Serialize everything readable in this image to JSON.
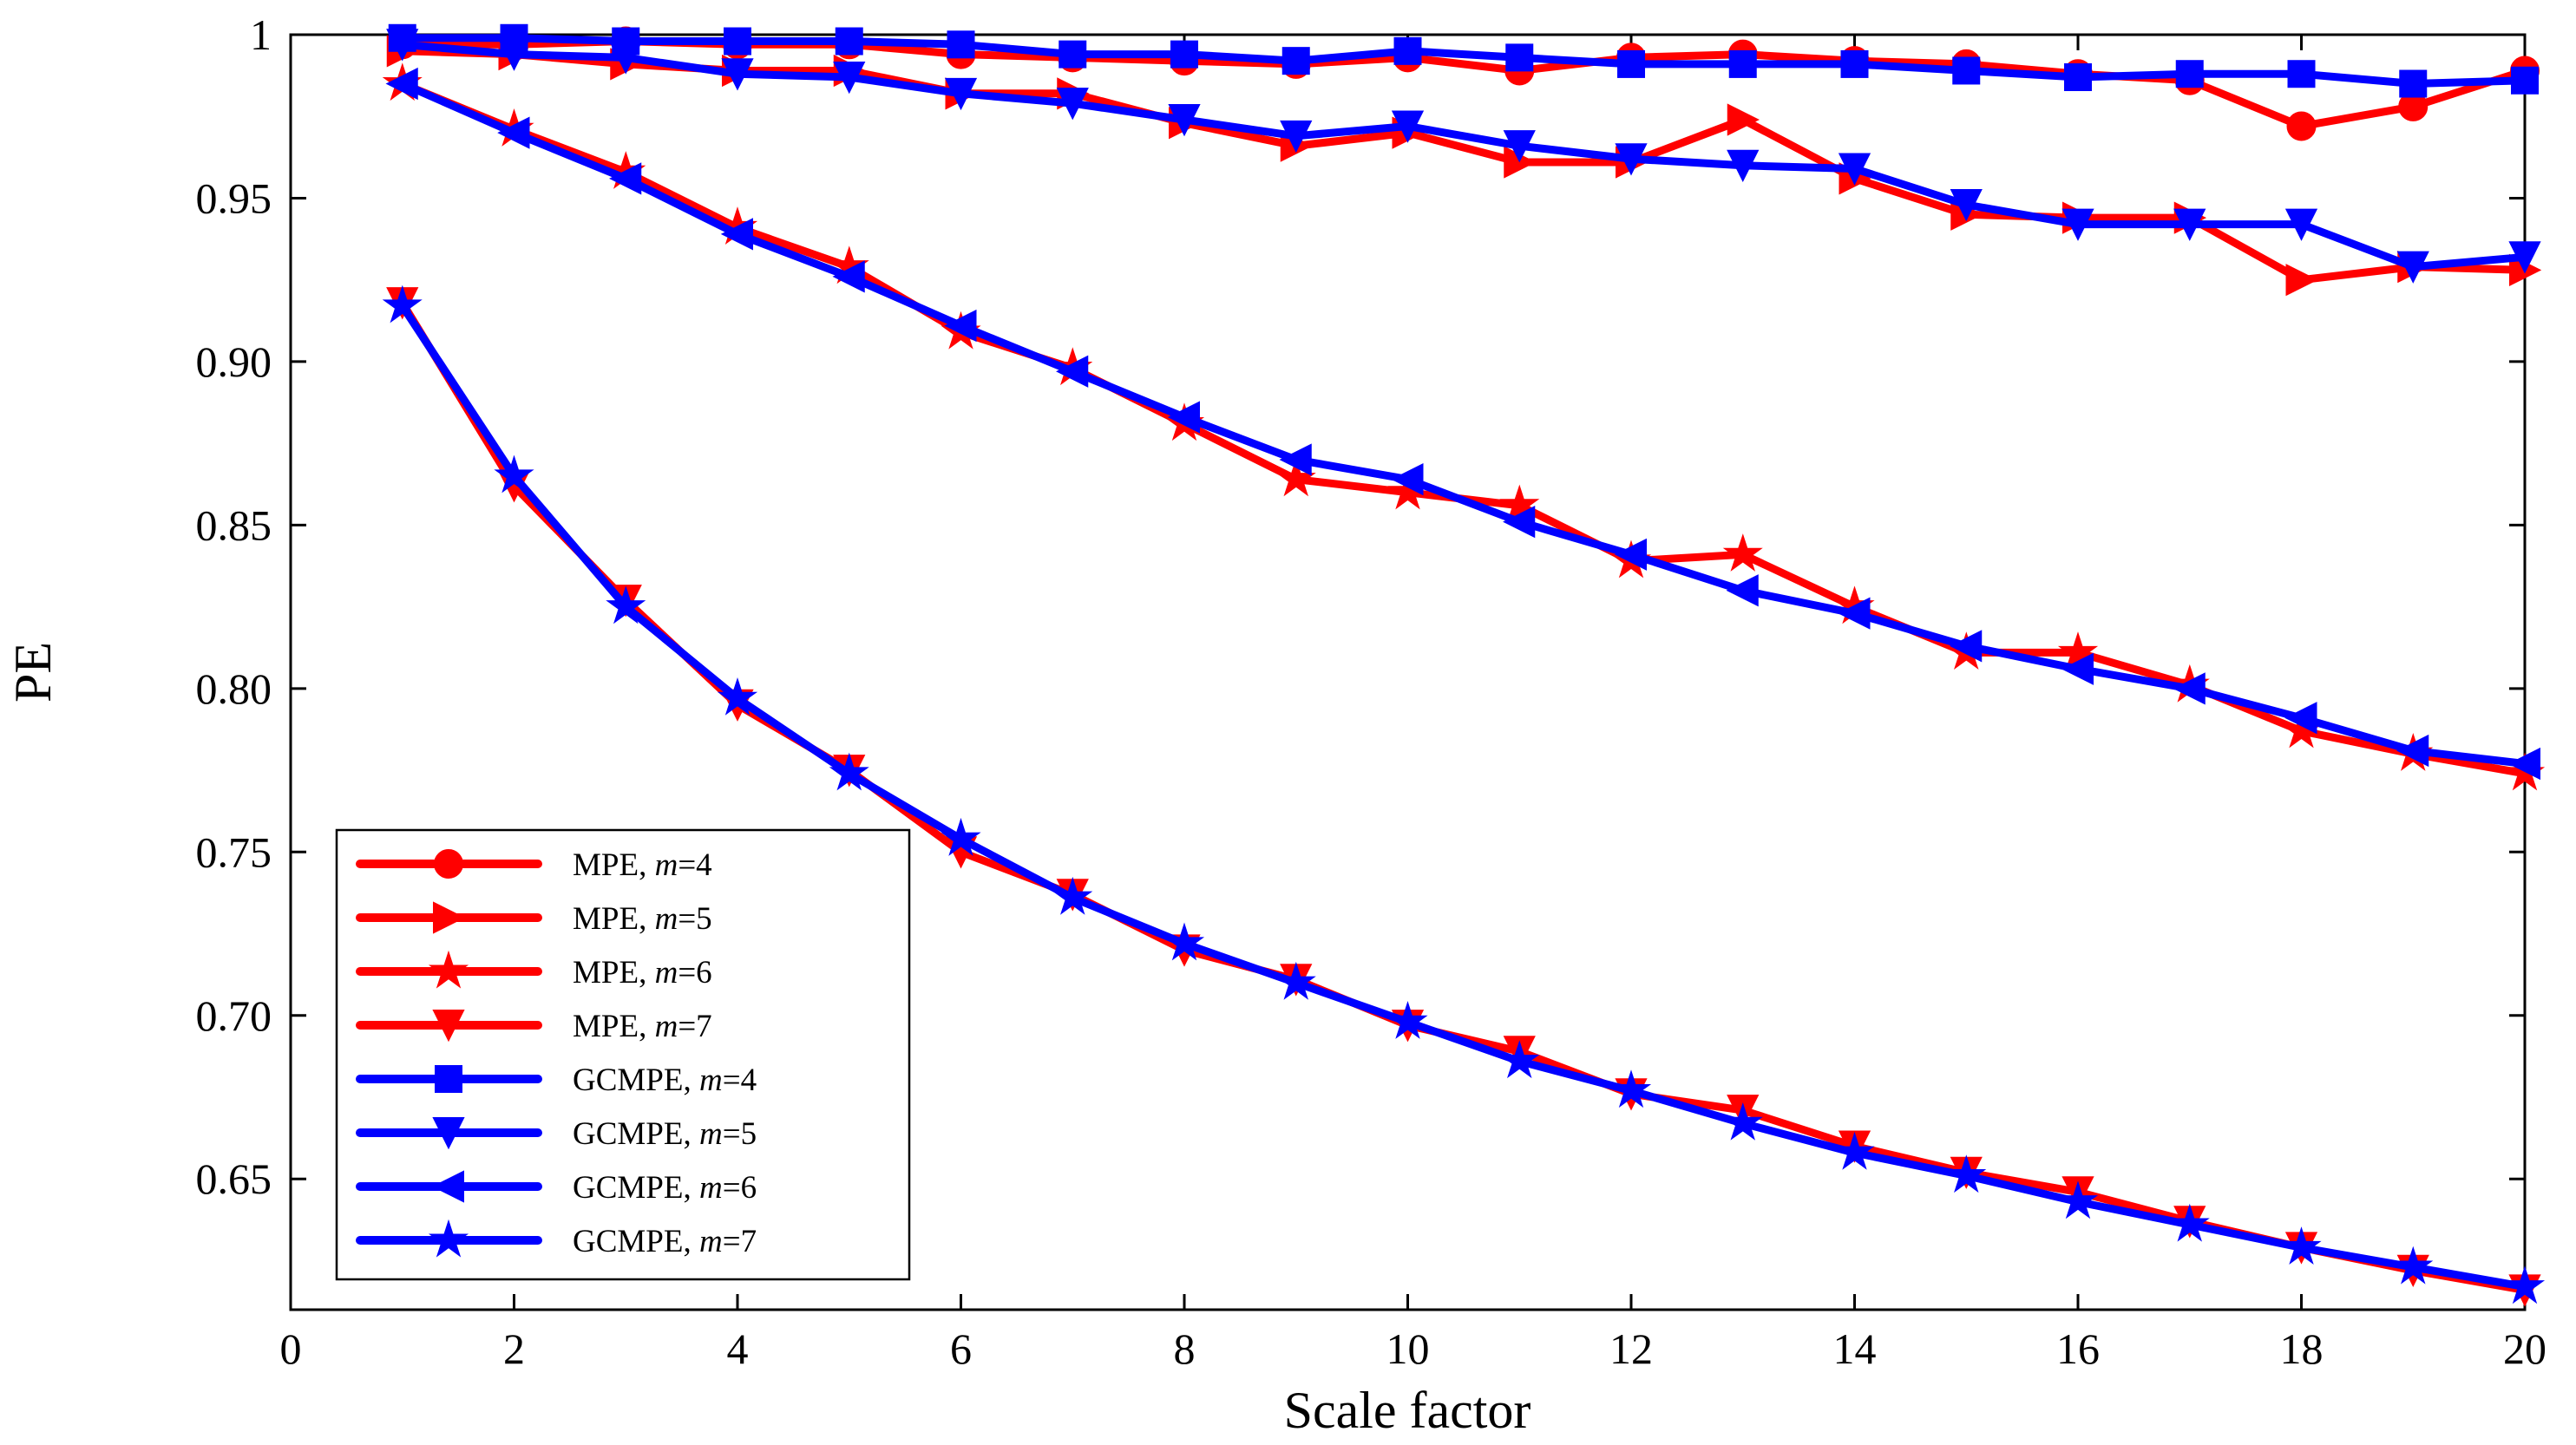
{
  "chart_data": {
    "type": "line",
    "title": "",
    "xlabel": "Scale factor",
    "ylabel": "PE",
    "xlim": [
      0,
      20
    ],
    "ylim": [
      0.61,
      1.0
    ],
    "xticks": [
      0,
      2,
      4,
      6,
      8,
      10,
      12,
      14,
      16,
      18,
      20
    ],
    "xtick_labels": [
      "0",
      "2",
      "4",
      "6",
      "8",
      "10",
      "12",
      "14",
      "16",
      "18",
      "20"
    ],
    "yticks": [
      1.0,
      0.95,
      0.9,
      0.85,
      0.8,
      0.75,
      0.7,
      0.65
    ],
    "ytick_labels": [
      "1",
      "0.95",
      "0.90",
      "0.85",
      "0.80",
      "0.75",
      "0.70",
      "0.65"
    ],
    "legend_position": "bottom-left",
    "x": [
      1,
      2,
      3,
      4,
      5,
      6,
      7,
      8,
      9,
      10,
      11,
      12,
      13,
      14,
      15,
      16,
      17,
      18,
      19,
      20
    ],
    "series": [
      {
        "name": "MPE, m=4",
        "method": "MPE, ",
        "param": "m",
        "eq": "=4",
        "color": "#ff0000",
        "marker": "circle",
        "values": [
          0.997,
          0.997,
          0.998,
          0.997,
          0.997,
          0.994,
          0.993,
          0.992,
          0.991,
          0.993,
          0.989,
          0.993,
          0.994,
          0.992,
          0.991,
          0.988,
          0.986,
          0.972,
          0.978,
          0.989
        ]
      },
      {
        "name": "MPE, m=5",
        "method": "MPE, ",
        "param": "m",
        "eq": "=5",
        "color": "#ff0000",
        "marker": "triangle-right",
        "values": [
          0.995,
          0.994,
          0.991,
          0.989,
          0.989,
          0.982,
          0.982,
          0.973,
          0.966,
          0.97,
          0.961,
          0.961,
          0.974,
          0.956,
          0.945,
          0.944,
          0.944,
          0.925,
          0.929,
          0.928
        ]
      },
      {
        "name": "MPE, m=6",
        "method": "MPE, ",
        "param": "m",
        "eq": "=6",
        "color": "#ff0000",
        "marker": "star",
        "values": [
          0.985,
          0.971,
          0.958,
          0.941,
          0.929,
          0.909,
          0.898,
          0.881,
          0.864,
          0.86,
          0.856,
          0.839,
          0.841,
          0.825,
          0.811,
          0.811,
          0.801,
          0.787,
          0.78,
          0.774
        ]
      },
      {
        "name": "MPE,  m=7",
        "method": "MPE,  ",
        "param": "m",
        "eq": "=7",
        "color": "#ff0000",
        "marker": "triangle-down",
        "values": [
          0.918,
          0.862,
          0.827,
          0.795,
          0.775,
          0.75,
          0.737,
          0.72,
          0.711,
          0.697,
          0.689,
          0.676,
          0.671,
          0.66,
          0.652,
          0.646,
          0.637,
          0.629,
          0.622,
          0.616
        ]
      },
      {
        "name": "GCMPE, m=4",
        "method": "GCMPE, ",
        "param": "m",
        "eq": "=4",
        "color": "#0000ff",
        "marker": "square",
        "values": [
          0.999,
          0.999,
          0.998,
          0.998,
          0.998,
          0.997,
          0.994,
          0.994,
          0.992,
          0.995,
          0.993,
          0.991,
          0.991,
          0.991,
          0.989,
          0.987,
          0.988,
          0.988,
          0.985,
          0.986
        ]
      },
      {
        "name": "GCMPE, m=5",
        "method": "GCMPE, ",
        "param": "m",
        "eq": "=5",
        "color": "#0000ff",
        "marker": "triangle-down",
        "values": [
          0.997,
          0.994,
          0.993,
          0.988,
          0.987,
          0.982,
          0.979,
          0.974,
          0.969,
          0.972,
          0.966,
          0.962,
          0.96,
          0.959,
          0.948,
          0.942,
          0.942,
          0.942,
          0.929,
          0.932
        ]
      },
      {
        "name": "GCMPE, m=6",
        "method": "GCMPE, ",
        "param": "m",
        "eq": "=6",
        "color": "#0000ff",
        "marker": "triangle-left",
        "values": [
          0.985,
          0.97,
          0.956,
          0.939,
          0.926,
          0.911,
          0.897,
          0.883,
          0.87,
          0.864,
          0.851,
          0.841,
          0.83,
          0.823,
          0.813,
          0.806,
          0.8,
          0.791,
          0.781,
          0.777
        ]
      },
      {
        "name": "GCMPE, m=7",
        "method": "GCMPE, ",
        "param": "m",
        "eq": "=7",
        "color": "#0000ff",
        "marker": "star",
        "values": [
          0.917,
          0.865,
          0.825,
          0.797,
          0.774,
          0.754,
          0.736,
          0.722,
          0.71,
          0.698,
          0.686,
          0.677,
          0.667,
          0.658,
          0.651,
          0.643,
          0.636,
          0.629,
          0.623,
          0.617
        ]
      }
    ]
  }
}
